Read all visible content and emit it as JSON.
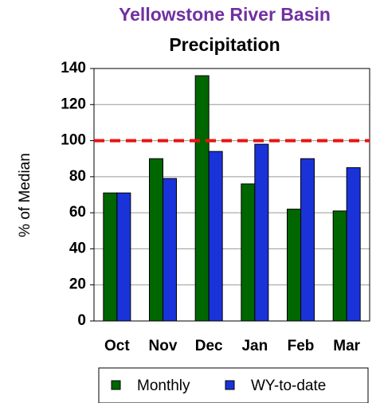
{
  "chart_data": {
    "type": "bar",
    "title": "Yellowstone River Basin",
    "subtitle": "Precipitation",
    "y_label": "% of Median",
    "categories": [
      "Oct",
      "Nov",
      "Dec",
      "Jan",
      "Feb",
      "Mar"
    ],
    "series": [
      {
        "name": "Monthly",
        "color": "#006600",
        "values": [
          71,
          90,
          136,
          76,
          62,
          61
        ]
      },
      {
        "name": "WY-to-date",
        "color": "#1a33d9",
        "values": [
          71,
          79,
          94,
          98,
          90,
          85
        ]
      }
    ],
    "ylim": [
      0,
      140
    ],
    "yticks": [
      0,
      20,
      40,
      60,
      80,
      100,
      120,
      140
    ],
    "grid": true,
    "reference_line": {
      "value": 100,
      "color": "#ee1111"
    },
    "legend": "bottom"
  }
}
